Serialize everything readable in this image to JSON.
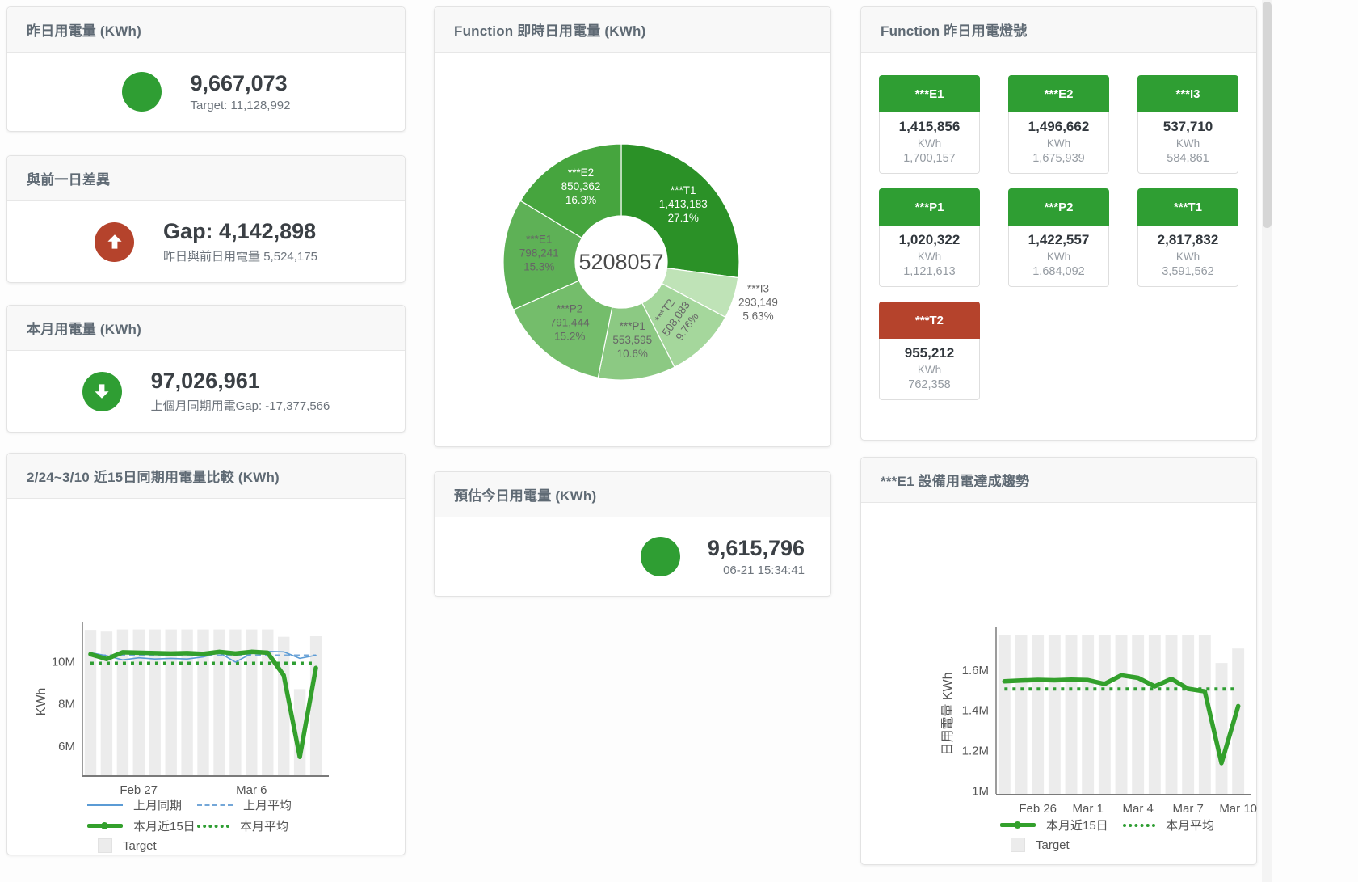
{
  "colors": {
    "primary_green": "#2f9e33",
    "alert_red": "#b5432c",
    "blue_line": "#5b9bd5",
    "blue_dash": "#74a7d8",
    "green_line": "#33a02c",
    "target_bar": "#ececec"
  },
  "kpi_cards": {
    "yesterday": {
      "title": "昨日用電量 (KWh)",
      "value": "9,667,073",
      "subtext": "Target: 11,128,992",
      "indicator": "green-circle"
    },
    "day_gap": {
      "title": "與前一日差異",
      "value": "Gap: 4,142,898",
      "subtext": "昨日與前日用電量 5,524,175",
      "indicator": "red-circle-up-arrow"
    },
    "month": {
      "title": "本月用電量 (KWh)",
      "value": "97,026,961",
      "subtext": "上個月同期用電Gap: -17,377,566",
      "indicator": "green-circle-down-arrow"
    },
    "estimate": {
      "title": "預估今日用電量 (KWh)",
      "value": "9,615,796",
      "subtext": "06-21 15:34:41",
      "indicator": "green-circle"
    }
  },
  "donut_card": {
    "title": "Function 即時日用電量 (KWh)"
  },
  "lights_card": {
    "title": "Function 昨日用電燈號",
    "unit": "KWh",
    "tiles": [
      {
        "name": "***E1",
        "value": "1,415,856",
        "target": "1,700,157",
        "status": "green"
      },
      {
        "name": "***E2",
        "value": "1,496,662",
        "target": "1,675,939",
        "status": "green"
      },
      {
        "name": "***I3",
        "value": "537,710",
        "target": "584,861",
        "status": "green"
      },
      {
        "name": "***P1",
        "value": "1,020,322",
        "target": "1,121,613",
        "status": "green"
      },
      {
        "name": "***P2",
        "value": "1,422,557",
        "target": "1,684,092",
        "status": "green"
      },
      {
        "name": "***T1",
        "value": "2,817,832",
        "target": "3,591,562",
        "status": "green"
      },
      {
        "name": "***T2",
        "value": "955,212",
        "target": "762,358",
        "status": "red"
      }
    ]
  },
  "compare_card": {
    "title": "2/24~3/10 近15日同期用電量比較 (KWh)",
    "target_label": "Target"
  },
  "trend_card": {
    "title": "***E1 設備用電達成趨勢",
    "target_label": "Target"
  },
  "chart_data": [
    {
      "type": "pie",
      "title": "Function 即時日用電量 (KWh)",
      "center_total": "5208057",
      "slices": [
        {
          "name": "***T1",
          "value": "1,413,183",
          "pct": 27.1,
          "pct_label": "27.1%",
          "color": "#2b9127",
          "label_color": "#ffffff",
          "label_placement": "inside"
        },
        {
          "name": "***I3",
          "value": "293,149",
          "pct": 5.63,
          "pct_label": "5.63%",
          "color": "#bfe3b7",
          "label_color": "#666666",
          "label_placement": "outside"
        },
        {
          "name": "***T2",
          "value": "508,083",
          "pct": 9.76,
          "pct_label": "9.76%",
          "color": "#a5d79c",
          "label_color": "#666666",
          "label_placement": "inside",
          "label_rotate": -55
        },
        {
          "name": "***P1",
          "value": "553,595",
          "pct": 10.6,
          "pct_label": "10.6%",
          "color": "#8cc983",
          "label_color": "#666666",
          "label_placement": "inside"
        },
        {
          "name": "***P2",
          "value": "791,444",
          "pct": 15.2,
          "pct_label": "15.2%",
          "color": "#74bd6b",
          "label_color": "#666666",
          "label_placement": "inside"
        },
        {
          "name": "***E1",
          "value": "798,241",
          "pct": 15.3,
          "pct_label": "15.3%",
          "color": "#5eb156",
          "label_color": "#666666",
          "label_placement": "inside"
        },
        {
          "name": "***E2",
          "value": "850,362",
          "pct": 16.3,
          "pct_label": "16.3%",
          "color": "#46a53e",
          "label_color": "#ffffff",
          "label_placement": "inside"
        }
      ]
    },
    {
      "type": "line",
      "title": "2/24~3/10 近15日同期用電量比較 (KWh)",
      "ylabel": "KWh",
      "ylim": [
        4630000,
        11580000
      ],
      "yticks": [
        {
          "value": 6000000,
          "label": "6M"
        },
        {
          "value": 8000000,
          "label": "8M"
        },
        {
          "value": 10000000,
          "label": "10M"
        }
      ],
      "xticks": [
        {
          "index": 3,
          "label": "Feb 27"
        },
        {
          "index": 10,
          "label": "Mar 6"
        }
      ],
      "target_series_name": "Target",
      "target_bars": [
        11500000,
        11420000,
        11520000,
        11520000,
        11520000,
        11520000,
        11520000,
        11520000,
        11520000,
        11520000,
        11520000,
        11520000,
        11170000,
        8700000,
        11200000
      ],
      "series": [
        {
          "name": "上月同期",
          "style": "solid",
          "color": "#5b9bd5",
          "width": 1.6,
          "values": [
            10420000,
            10280000,
            10080000,
            10180000,
            10120000,
            10150000,
            10120000,
            10220000,
            10420000,
            9980000,
            10380000,
            10480000,
            10460000,
            10150000,
            10300000
          ]
        },
        {
          "name": "上月平均",
          "style": "dashed",
          "color": "#74a7d8",
          "width": 2,
          "const": 10300000
        },
        {
          "name": "本月近15日",
          "style": "solid",
          "color": "#33a02c",
          "width": 5.5,
          "values": [
            10350000,
            10120000,
            10440000,
            10420000,
            10400000,
            10380000,
            10400000,
            10360000,
            10460000,
            10380000,
            10460000,
            10420000,
            9350000,
            5500000,
            9700000
          ]
        },
        {
          "name": "本月平均",
          "style": "dotted",
          "color": "#2f9e33",
          "width": 4,
          "const": 9920000
        }
      ]
    },
    {
      "type": "line",
      "title": "***E1 設備用電達成趨勢",
      "ylabel": "日用電量 KWh",
      "ylim": [
        985000,
        1780000
      ],
      "yticks": [
        {
          "value": 1000000,
          "label": "1M"
        },
        {
          "value": 1200000,
          "label": "1.2M"
        },
        {
          "value": 1400000,
          "label": "1.4M"
        },
        {
          "value": 1600000,
          "label": "1.6M"
        }
      ],
      "xticks": [
        {
          "index": 2,
          "label": "Feb 26"
        },
        {
          "index": 5,
          "label": "Mar 1"
        },
        {
          "index": 8,
          "label": "Mar 4"
        },
        {
          "index": 11,
          "label": "Mar 7"
        },
        {
          "index": 14,
          "label": "Mar 10"
        }
      ],
      "target_series_name": "Target",
      "target_bars": [
        1775000,
        1775000,
        1775000,
        1775000,
        1775000,
        1775000,
        1775000,
        1775000,
        1775000,
        1775000,
        1775000,
        1775000,
        1775000,
        1635000,
        1707000
      ],
      "series": [
        {
          "name": "本月近15日",
          "style": "solid",
          "color": "#33a02c",
          "width": 5.5,
          "values": [
            1544000,
            1548000,
            1551000,
            1549000,
            1552000,
            1550000,
            1531000,
            1574000,
            1561000,
            1519000,
            1556000,
            1507000,
            1494000,
            1138000,
            1421000
          ]
        },
        {
          "name": "本月平均",
          "style": "dotted",
          "color": "#2f9e33",
          "width": 4,
          "const": 1506000
        }
      ]
    }
  ]
}
